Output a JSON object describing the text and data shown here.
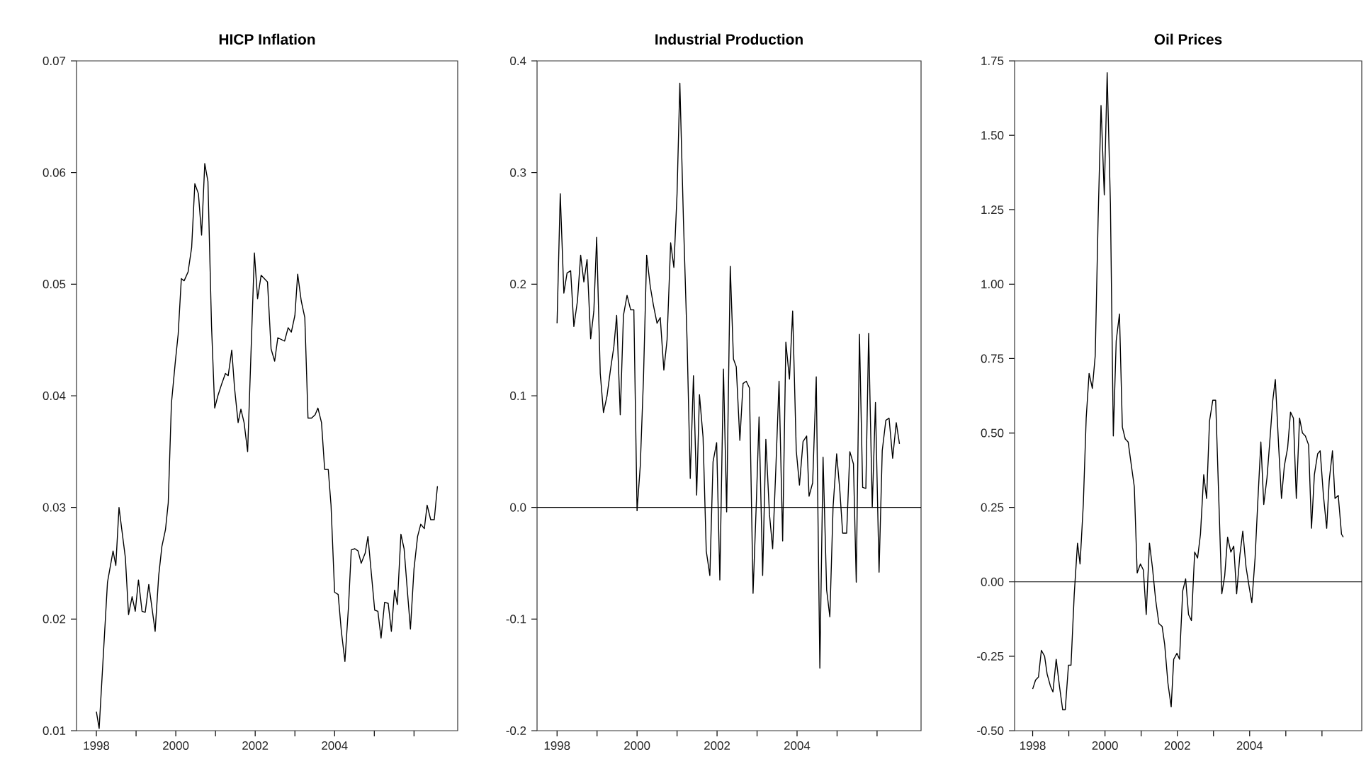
{
  "chart_data": [
    {
      "type": "line",
      "title": "HICP Inflation",
      "color": "#000000",
      "x": [
        1998.0,
        1998.07,
        1998.28,
        1998.42,
        1998.49,
        1998.57,
        1998.73,
        1998.81,
        1998.9,
        1998.98,
        1999.06,
        1999.15,
        1999.23,
        1999.32,
        1999.48,
        1999.57,
        1999.65,
        1999.74,
        1999.81,
        1999.89,
        1999.99,
        2000.06,
        2000.14,
        2000.21,
        2000.31,
        2000.4,
        2000.48,
        2000.57,
        2000.65,
        2000.73,
        2000.81,
        2000.9,
        2000.98,
        2001.06,
        2001.16,
        2001.25,
        2001.32,
        2001.41,
        2001.48,
        2001.57,
        2001.64,
        2001.72,
        2001.81,
        2001.98,
        2002.06,
        2002.15,
        2002.31,
        2002.4,
        2002.49,
        2002.57,
        2002.74,
        2002.83,
        2002.91,
        2003.0,
        2003.07,
        2003.16,
        2003.25,
        2003.33,
        2003.42,
        2003.51,
        2003.58,
        2003.67,
        2003.75,
        2003.84,
        2003.91,
        2004.0,
        2004.09,
        2004.17,
        2004.26,
        2004.35,
        2004.42,
        2004.51,
        2004.59,
        2004.67,
        2004.77,
        2004.84,
        2005.01,
        2005.09,
        2005.17,
        2005.26,
        2005.35,
        2005.43,
        2005.51,
        2005.58,
        2005.67,
        2005.75,
        2005.84,
        2005.91,
        2006.0,
        2006.09,
        2006.17,
        2006.26,
        2006.33,
        2006.42,
        2006.51,
        2006.59
      ],
      "values": [
        0.0117,
        0.0102,
        0.0233,
        0.0261,
        0.0248,
        0.03,
        0.0255,
        0.0204,
        0.022,
        0.0207,
        0.0235,
        0.0207,
        0.0206,
        0.0231,
        0.0189,
        0.0239,
        0.0265,
        0.028,
        0.0304,
        0.0393,
        0.0431,
        0.0455,
        0.0505,
        0.0503,
        0.0511,
        0.0533,
        0.059,
        0.0581,
        0.0544,
        0.0608,
        0.0592,
        0.0463,
        0.0389,
        0.04,
        0.0411,
        0.042,
        0.0418,
        0.0441,
        0.0407,
        0.0376,
        0.0388,
        0.0376,
        0.035,
        0.0528,
        0.0487,
        0.0508,
        0.0502,
        0.0442,
        0.0431,
        0.0452,
        0.0449,
        0.0461,
        0.0457,
        0.0472,
        0.0509,
        0.0485,
        0.047,
        0.038,
        0.038,
        0.0383,
        0.0389,
        0.0376,
        0.0334,
        0.0334,
        0.0302,
        0.0224,
        0.0222,
        0.0189,
        0.0162,
        0.0211,
        0.0262,
        0.0263,
        0.0261,
        0.025,
        0.0259,
        0.0274,
        0.0208,
        0.0207,
        0.0183,
        0.0215,
        0.0214,
        0.0189,
        0.0226,
        0.0213,
        0.0276,
        0.0263,
        0.0222,
        0.0191,
        0.0245,
        0.0274,
        0.0285,
        0.0281,
        0.0302,
        0.0289,
        0.0289,
        0.0319
      ],
      "xlim": [
        1997.5,
        2007.1
      ],
      "xticks": [
        1998,
        {
          "value": 1999,
          "label": null
        },
        2000,
        {
          "value": 2001,
          "label": null
        },
        2002,
        {
          "value": 2003,
          "label": null
        },
        2004,
        {
          "value": 2005,
          "label": null
        },
        {
          "value": 2006,
          "label": null
        }
      ],
      "ylim": [
        0.01,
        0.07
      ],
      "yticks": [
        0.01,
        0.02,
        0.03,
        0.04,
        0.05,
        0.06,
        0.07
      ]
    },
    {
      "type": "line",
      "title": "Industrial Production",
      "color": "#000000",
      "x": [
        1998.0,
        1998.08,
        1998.17,
        1998.25,
        1998.34,
        1998.42,
        1998.51,
        1998.59,
        1998.67,
        1998.75,
        1998.84,
        1998.92,
        1998.99,
        1999.08,
        1999.16,
        1999.25,
        1999.33,
        1999.42,
        1999.49,
        1999.58,
        1999.66,
        1999.75,
        1999.84,
        1999.92,
        2000.0,
        2000.08,
        2000.16,
        2000.24,
        2000.33,
        2000.41,
        2000.5,
        2000.58,
        2000.67,
        2000.75,
        2000.84,
        2000.92,
        2001.0,
        2001.07,
        2001.16,
        2001.25,
        2001.33,
        2001.41,
        2001.49,
        2001.56,
        2001.65,
        2001.73,
        2001.82,
        2001.9,
        2001.99,
        2002.07,
        2002.16,
        2002.24,
        2002.33,
        2002.41,
        2002.48,
        2002.57,
        2002.65,
        2002.73,
        2002.81,
        2002.9,
        2002.98,
        2003.05,
        2003.14,
        2003.22,
        2003.31,
        2003.39,
        2003.47,
        2003.55,
        2003.64,
        2003.72,
        2003.81,
        2003.89,
        2003.98,
        2004.06,
        2004.15,
        2004.24,
        2004.3,
        2004.39,
        2004.48,
        2004.57,
        2004.65,
        2004.74,
        2004.82,
        2004.9,
        2004.99,
        2005.07,
        2005.14,
        2005.24,
        2005.32,
        2005.41,
        2005.48,
        2005.56,
        2005.64,
        2005.72,
        2005.79,
        2005.88,
        2005.96,
        2006.05,
        2006.13,
        2006.22,
        2006.3,
        2006.39,
        2006.48,
        2006.56
      ],
      "values": [
        0.165,
        0.281,
        0.192,
        0.21,
        0.212,
        0.162,
        0.185,
        0.226,
        0.202,
        0.222,
        0.151,
        0.176,
        0.242,
        0.12,
        0.085,
        0.1,
        0.122,
        0.144,
        0.172,
        0.083,
        0.172,
        0.19,
        0.177,
        0.177,
        -0.003,
        0.037,
        0.115,
        0.226,
        0.198,
        0.181,
        0.165,
        0.17,
        0.123,
        0.15,
        0.237,
        0.215,
        0.281,
        0.38,
        0.257,
        0.15,
        0.026,
        0.118,
        0.011,
        0.101,
        0.063,
        -0.039,
        -0.061,
        0.041,
        0.058,
        -0.065,
        0.124,
        -0.004,
        0.216,
        0.133,
        0.126,
        0.06,
        0.111,
        0.113,
        0.107,
        -0.077,
        0.002,
        0.081,
        -0.061,
        0.061,
        -0.006,
        -0.037,
        0.035,
        0.113,
        -0.03,
        0.148,
        0.115,
        0.176,
        0.051,
        0.02,
        0.059,
        0.064,
        0.01,
        0.022,
        0.117,
        -0.144,
        0.045,
        -0.074,
        -0.098,
        0.0,
        0.048,
        0.015,
        -0.023,
        -0.023,
        0.05,
        0.039,
        -0.067,
        0.155,
        0.018,
        0.017,
        0.156,
        0.0,
        0.094,
        -0.058,
        0.051,
        0.078,
        0.08,
        0.044,
        0.076,
        0.057
      ],
      "xlim": [
        1997.5,
        2007.1
      ],
      "xticks": [
        1998,
        {
          "value": 1999,
          "label": null
        },
        2000,
        {
          "value": 2001,
          "label": null
        },
        2002,
        {
          "value": 2003,
          "label": null
        },
        2004,
        {
          "value": 2005,
          "label": null
        },
        {
          "value": 2006,
          "label": null
        }
      ],
      "ylim": [
        -0.2,
        0.4
      ],
      "yticks": [
        -0.2,
        -0.1,
        {
          "value": 0,
          "label": "0.0"
        },
        0.1,
        0.2,
        0.3,
        0.4
      ],
      "ref_lines": [
        {
          "axis": "y",
          "value": 0
        }
      ]
    },
    {
      "type": "line",
      "title": "Oil Prices",
      "color": "#000000",
      "x": [
        1998.0,
        1998.08,
        1998.16,
        1998.24,
        1998.33,
        1998.4,
        1998.49,
        1998.56,
        1998.65,
        1998.74,
        1998.83,
        1998.9,
        1998.99,
        1999.06,
        1999.15,
        1999.24,
        1999.31,
        1999.4,
        1999.48,
        1999.56,
        1999.65,
        1999.73,
        1999.81,
        1999.89,
        1999.98,
        2000.06,
        2000.15,
        2000.23,
        2000.31,
        2000.4,
        2000.48,
        2000.56,
        2000.64,
        2000.73,
        2000.81,
        2000.89,
        2000.98,
        2001.06,
        2001.14,
        2001.23,
        2001.31,
        2001.4,
        2001.49,
        2001.58,
        2001.65,
        2001.74,
        2001.83,
        2001.9,
        2001.99,
        2002.06,
        2002.15,
        2002.23,
        2002.31,
        2002.39,
        2002.48,
        2002.56,
        2002.64,
        2002.73,
        2002.81,
        2002.89,
        2002.98,
        2003.06,
        2003.23,
        2003.31,
        2003.39,
        2003.48,
        2003.56,
        2003.64,
        2003.73,
        2003.81,
        2003.9,
        2003.99,
        2004.06,
        2004.15,
        2004.23,
        2004.31,
        2004.39,
        2004.48,
        2004.55,
        2004.64,
        2004.71,
        2004.8,
        2004.88,
        2004.96,
        2005.05,
        2005.13,
        2005.21,
        2005.29,
        2005.38,
        2005.46,
        2005.54,
        2005.63,
        2005.71,
        2005.79,
        2005.88,
        2005.95,
        2006.04,
        2006.13,
        2006.2,
        2006.29,
        2006.36,
        2006.45,
        2006.54,
        2006.59
      ],
      "values": [
        -0.36,
        -0.33,
        -0.32,
        -0.23,
        -0.25,
        -0.31,
        -0.35,
        -0.37,
        -0.26,
        -0.35,
        -0.43,
        -0.43,
        -0.28,
        -0.28,
        -0.04,
        0.13,
        0.06,
        0.26,
        0.55,
        0.7,
        0.65,
        0.76,
        1.22,
        1.6,
        1.3,
        1.71,
        1.27,
        0.49,
        0.81,
        0.9,
        0.52,
        0.48,
        0.47,
        0.39,
        0.32,
        0.03,
        0.06,
        0.04,
        -0.11,
        0.13,
        0.05,
        -0.06,
        -0.14,
        -0.15,
        -0.21,
        -0.34,
        -0.42,
        -0.26,
        -0.24,
        -0.26,
        -0.03,
        0.01,
        -0.11,
        -0.13,
        0.1,
        0.08,
        0.16,
        0.36,
        0.28,
        0.54,
        0.61,
        0.61,
        -0.04,
        0.02,
        0.15,
        0.1,
        0.12,
        -0.04,
        0.09,
        0.17,
        0.05,
        -0.02,
        -0.07,
        0.08,
        0.28,
        0.47,
        0.26,
        0.35,
        0.46,
        0.61,
        0.68,
        0.46,
        0.28,
        0.39,
        0.45,
        0.57,
        0.55,
        0.28,
        0.55,
        0.5,
        0.49,
        0.46,
        0.18,
        0.36,
        0.43,
        0.44,
        0.29,
        0.18,
        0.34,
        0.44,
        0.28,
        0.29,
        0.16,
        0.15
      ],
      "xlim": [
        1997.5,
        2007.1
      ],
      "xticks": [
        1998,
        {
          "value": 1999,
          "label": null
        },
        2000,
        {
          "value": 2001,
          "label": null
        },
        2002,
        {
          "value": 2003,
          "label": null
        },
        2004,
        {
          "value": 2005,
          "label": null
        },
        {
          "value": 2006,
          "label": null
        }
      ],
      "ylim": [
        -0.5,
        1.75
      ],
      "yticks": [
        {
          "value": -0.5,
          "label": "-0.50"
        },
        -0.25,
        {
          "value": 0,
          "label": "0.00"
        },
        0.25,
        {
          "value": 0.5,
          "label": "0.50"
        },
        0.75,
        {
          "value": 1,
          "label": "1.00"
        },
        1.25,
        {
          "value": 1.5,
          "label": "1.50"
        },
        1.75
      ],
      "ref_lines": [
        {
          "axis": "y",
          "value": 0
        }
      ]
    }
  ]
}
